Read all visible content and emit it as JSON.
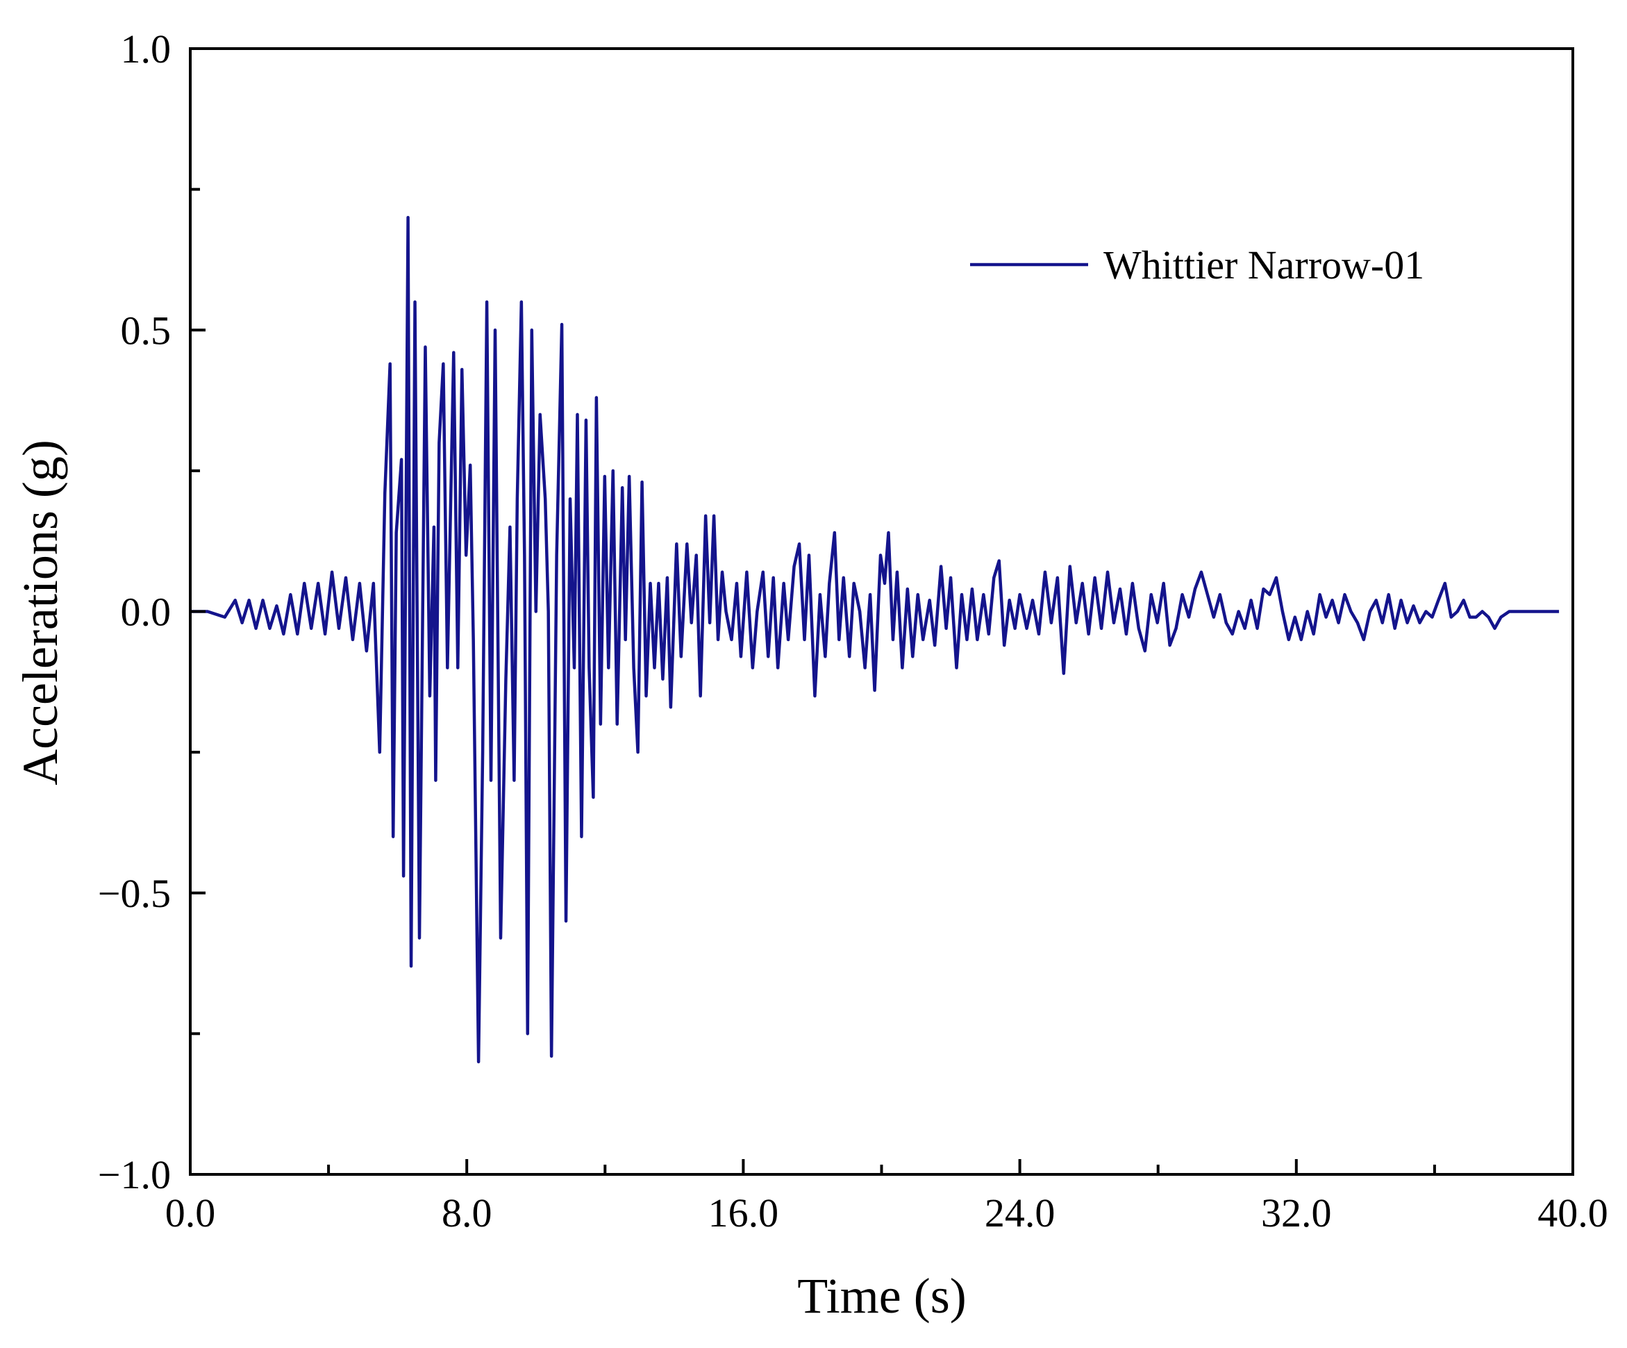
{
  "chart_data": {
    "type": "line",
    "x_label": "Time (s)",
    "y_label": "Accelerations (g)",
    "xlim": [
      0,
      40
    ],
    "ylim": [
      -1,
      1
    ],
    "xticks": [
      {
        "value": 0,
        "label": "0.0"
      },
      {
        "value": 8,
        "label": "8.0"
      },
      {
        "value": 16,
        "label": "16.0"
      },
      {
        "value": 24,
        "label": "24.0"
      },
      {
        "value": 32,
        "label": "32.0"
      },
      {
        "value": 40,
        "label": "40.0"
      }
    ],
    "xminorticks": [
      4,
      12,
      20,
      28,
      36
    ],
    "yticks": [
      {
        "value": -1,
        "label": "−1.0"
      },
      {
        "value": -0.5,
        "label": "−0.5"
      },
      {
        "value": 0,
        "label": "0.0"
      },
      {
        "value": 0.5,
        "label": "0.5"
      },
      {
        "value": 1,
        "label": "1.0"
      }
    ],
    "yminorticks": [
      -0.75,
      -0.25,
      0.25,
      0.75
    ],
    "legend": "upper right",
    "x": [
      0,
      0.5,
      1.0,
      1.3,
      1.5,
      1.7,
      1.9,
      2.1,
      2.3,
      2.5,
      2.7,
      2.9,
      3.1,
      3.3,
      3.5,
      3.7,
      3.9,
      4.1,
      4.3,
      4.5,
      4.7,
      4.9,
      5.1,
      5.3,
      5.48,
      5.63,
      5.78,
      5.87,
      5.96,
      6.11,
      6.17,
      6.3,
      6.39,
      6.5,
      6.63,
      6.8,
      6.93,
      7.05,
      7.1,
      7.2,
      7.32,
      7.44,
      7.62,
      7.74,
      7.86,
      7.98,
      8.1,
      8.19,
      8.34,
      8.46,
      8.58,
      8.7,
      8.82,
      8.98,
      9.13,
      9.25,
      9.37,
      9.46,
      9.58,
      9.67,
      9.76,
      9.88,
      10.0,
      10.12,
      10.27,
      10.36,
      10.45,
      10.6,
      10.75,
      10.87,
      10.99,
      11.11,
      11.2,
      11.32,
      11.45,
      11.54,
      11.66,
      11.75,
      11.87,
      11.99,
      12.1,
      12.23,
      12.35,
      12.5,
      12.59,
      12.7,
      12.83,
      12.95,
      13.07,
      13.19,
      13.31,
      13.43,
      13.55,
      13.67,
      13.8,
      13.9,
      14.07,
      14.2,
      14.37,
      14.5,
      14.64,
      14.76,
      14.91,
      15.03,
      15.15,
      15.27,
      15.39,
      15.5,
      15.66,
      15.81,
      15.93,
      16.1,
      16.27,
      16.4,
      16.57,
      16.72,
      16.87,
      17.0,
      17.17,
      17.3,
      17.47,
      17.62,
      17.77,
      17.9,
      18.07,
      18.22,
      18.37,
      18.49,
      18.64,
      18.77,
      18.9,
      19.07,
      19.2,
      19.37,
      19.52,
      19.67,
      19.8,
      19.97,
      20.09,
      20.2,
      20.33,
      20.45,
      20.6,
      20.75,
      20.9,
      21.05,
      21.2,
      21.39,
      21.54,
      21.72,
      21.87,
      22.0,
      22.17,
      22.32,
      22.47,
      22.62,
      22.77,
      22.95,
      23.1,
      23.25,
      23.4,
      23.55,
      23.7,
      23.86,
      24.0,
      24.2,
      24.37,
      24.55,
      24.73,
      24.91,
      25.09,
      25.27,
      25.45,
      25.63,
      25.81,
      25.99,
      26.17,
      26.36,
      26.54,
      26.72,
      26.9,
      27.08,
      27.26,
      27.44,
      27.62,
      27.8,
      27.98,
      28.16,
      28.34,
      28.52,
      28.7,
      28.89,
      29.07,
      29.25,
      29.43,
      29.61,
      29.79,
      29.97,
      30.15,
      30.33,
      30.51,
      30.69,
      30.87,
      31.05,
      31.23,
      31.42,
      31.6,
      31.78,
      31.96,
      32.14,
      32.32,
      32.5,
      32.68,
      32.86,
      33.04,
      33.22,
      33.4,
      33.58,
      33.77,
      33.95,
      34.13,
      34.31,
      34.49,
      34.67,
      34.85,
      35.03,
      35.21,
      35.39,
      35.57,
      35.75,
      35.93,
      36.11,
      36.3,
      36.48,
      36.66,
      36.84,
      37.02,
      37.2,
      37.38,
      37.56,
      37.74,
      37.92,
      38.16,
      38.46,
      39.06,
      39.6
    ],
    "series": [
      {
        "name": "Whittier Narrow-01",
        "color": "#14148c",
        "values": [
          0,
          0,
          -0.01,
          0.02,
          -0.02,
          0.02,
          -0.03,
          0.02,
          -0.03,
          0.01,
          -0.04,
          0.03,
          -0.04,
          0.05,
          -0.03,
          0.05,
          -0.04,
          0.07,
          -0.03,
          0.06,
          -0.05,
          0.05,
          -0.07,
          0.05,
          -0.25,
          0.21,
          0.44,
          -0.4,
          0.14,
          0.27,
          -0.47,
          0.7,
          -0.63,
          0.55,
          -0.58,
          0.47,
          -0.15,
          0.15,
          -0.3,
          0.3,
          0.44,
          -0.1,
          0.46,
          -0.1,
          0.43,
          0.1,
          0.26,
          -0.05,
          -0.8,
          -0.25,
          0.55,
          -0.3,
          0.5,
          -0.58,
          -0.12,
          0.15,
          -0.3,
          0.2,
          0.55,
          0.1,
          -0.75,
          0.5,
          0.0,
          0.35,
          0.2,
          0.0,
          -0.79,
          0.1,
          0.51,
          -0.55,
          0.2,
          -0.1,
          0.35,
          -0.4,
          0.34,
          -0.1,
          -0.33,
          0.38,
          -0.2,
          0.24,
          -0.1,
          0.25,
          -0.2,
          0.22,
          -0.05,
          0.24,
          -0.1,
          -0.25,
          0.23,
          -0.15,
          0.05,
          -0.1,
          0.05,
          -0.12,
          0.06,
          -0.17,
          0.12,
          -0.08,
          0.12,
          -0.02,
          0.1,
          -0.15,
          0.17,
          -0.02,
          0.17,
          -0.05,
          0.07,
          0.0,
          -0.05,
          0.05,
          -0.08,
          0.07,
          -0.1,
          0.0,
          0.07,
          -0.08,
          0.06,
          -0.1,
          0.05,
          -0.05,
          0.08,
          0.12,
          -0.05,
          0.1,
          -0.15,
          0.03,
          -0.08,
          0.05,
          0.14,
          -0.05,
          0.06,
          -0.08,
          0.05,
          0.0,
          -0.1,
          0.03,
          -0.14,
          0.1,
          0.05,
          0.14,
          -0.05,
          0.07,
          -0.1,
          0.04,
          -0.08,
          0.03,
          -0.05,
          0.02,
          -0.06,
          0.08,
          -0.03,
          0.06,
          -0.1,
          0.03,
          -0.05,
          0.04,
          -0.05,
          0.03,
          -0.04,
          0.06,
          0.09,
          -0.06,
          0.02,
          -0.03,
          0.03,
          -0.03,
          0.02,
          -0.04,
          0.07,
          -0.02,
          0.06,
          -0.11,
          0.08,
          -0.02,
          0.05,
          -0.04,
          0.06,
          -0.03,
          0.07,
          -0.02,
          0.04,
          -0.04,
          0.05,
          -0.03,
          -0.07,
          0.03,
          -0.02,
          0.05,
          -0.06,
          -0.03,
          0.03,
          -0.01,
          0.04,
          0.07,
          0.03,
          -0.01,
          0.03,
          -0.02,
          -0.04,
          0.0,
          -0.03,
          0.02,
          -0.03,
          0.04,
          0.03,
          0.06,
          0.0,
          -0.05,
          -0.01,
          -0.05,
          0.0,
          -0.04,
          0.03,
          -0.01,
          0.02,
          -0.02,
          0.03,
          0.0,
          -0.02,
          -0.05,
          0.0,
          0.02,
          -0.02,
          0.03,
          -0.03,
          0.02,
          -0.02,
          0.01,
          -0.02,
          0.0,
          -0.01,
          0.02,
          0.05,
          -0.01,
          0.0,
          0.02,
          -0.01,
          -0.01,
          0.0,
          -0.01,
          -0.03,
          -0.01,
          0.0,
          0.0,
          0.0,
          0.0
        ]
      }
    ]
  }
}
